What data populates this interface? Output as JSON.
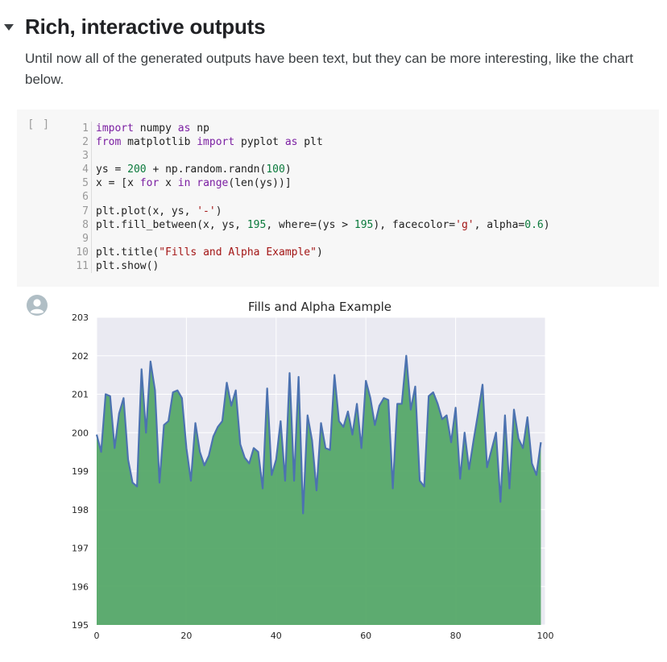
{
  "section": {
    "title": "Rich, interactive outputs",
    "collapse_icon": "caret-down-icon"
  },
  "text_cell": {
    "text": "Until now all of the generated outputs have been text, but they can be more interesting, like the chart below."
  },
  "code_cell": {
    "run_indicator": "[ ]",
    "lines": [
      [
        [
          "kw",
          "import"
        ],
        [
          "txt",
          " numpy "
        ],
        [
          "kw",
          "as"
        ],
        [
          "txt",
          " np"
        ]
      ],
      [
        [
          "kw",
          "from"
        ],
        [
          "txt",
          " matplotlib "
        ],
        [
          "kw",
          "import"
        ],
        [
          "txt",
          " pyplot "
        ],
        [
          "kw",
          "as"
        ],
        [
          "txt",
          " plt"
        ]
      ],
      [],
      [
        [
          "txt",
          "ys = "
        ],
        [
          "num",
          "200"
        ],
        [
          "txt",
          " + np.random.randn("
        ],
        [
          "num",
          "100"
        ],
        [
          "txt",
          ")"
        ]
      ],
      [
        [
          "txt",
          "x = [x "
        ],
        [
          "kw",
          "for"
        ],
        [
          "txt",
          " x "
        ],
        [
          "kw",
          "in"
        ],
        [
          "txt",
          " "
        ],
        [
          "fn",
          "range"
        ],
        [
          "txt",
          "(len(ys))]"
        ]
      ],
      [],
      [
        [
          "txt",
          "plt.plot(x, ys, "
        ],
        [
          "str",
          "'-'"
        ],
        [
          "txt",
          ")"
        ]
      ],
      [
        [
          "txt",
          "plt.fill_between(x, ys, "
        ],
        [
          "num",
          "195"
        ],
        [
          "txt",
          ", where=(ys > "
        ],
        [
          "num",
          "195"
        ],
        [
          "txt",
          "), facecolor="
        ],
        [
          "str",
          "'g'"
        ],
        [
          "txt",
          ", alpha="
        ],
        [
          "num",
          "0.6"
        ],
        [
          "txt",
          ")"
        ]
      ],
      [],
      [
        [
          "txt",
          "plt.title("
        ],
        [
          "str",
          "\"Fills and Alpha Example\""
        ],
        [
          "txt",
          ")"
        ]
      ],
      [
        [
          "txt",
          "plt.show()"
        ]
      ]
    ]
  },
  "output": {
    "avatar_icon": "user-avatar-icon"
  },
  "chart_data": {
    "type": "area",
    "title": "Fills and Alpha Example",
    "xlabel": "",
    "ylabel": "",
    "xlim": [
      0,
      100
    ],
    "ylim": [
      195,
      203
    ],
    "xticks": [
      0,
      20,
      40,
      60,
      80,
      100
    ],
    "yticks": [
      195,
      196,
      197,
      198,
      199,
      200,
      201,
      202,
      203
    ],
    "grid": true,
    "fill_baseline": 195,
    "colors": {
      "line": "#4c72b0",
      "fill": "#55a868",
      "background": "#eaeaf2",
      "grid": "#ffffff"
    },
    "x": [
      0,
      1,
      2,
      3,
      4,
      5,
      6,
      7,
      8,
      9,
      10,
      11,
      12,
      13,
      14,
      15,
      16,
      17,
      18,
      19,
      20,
      21,
      22,
      23,
      24,
      25,
      26,
      27,
      28,
      29,
      30,
      31,
      32,
      33,
      34,
      35,
      36,
      37,
      38,
      39,
      40,
      41,
      42,
      43,
      44,
      45,
      46,
      47,
      48,
      49,
      50,
      51,
      52,
      53,
      54,
      55,
      56,
      57,
      58,
      59,
      60,
      61,
      62,
      63,
      64,
      65,
      66,
      67,
      68,
      69,
      70,
      71,
      72,
      73,
      74,
      75,
      76,
      77,
      78,
      79,
      80,
      81,
      82,
      83,
      84,
      85,
      86,
      87,
      88,
      89,
      90,
      91,
      92,
      93,
      94,
      95,
      96,
      97,
      98,
      99
    ],
    "series": [
      {
        "values": [
          199.95,
          199.5,
          201.0,
          200.95,
          199.6,
          200.5,
          200.9,
          199.3,
          198.7,
          198.6,
          201.65,
          200.0,
          201.85,
          201.1,
          198.7,
          200.2,
          200.3,
          201.05,
          201.1,
          200.9,
          199.6,
          198.75,
          200.25,
          199.5,
          199.15,
          199.4,
          199.9,
          200.15,
          200.3,
          201.3,
          200.7,
          201.1,
          199.7,
          199.35,
          199.2,
          199.6,
          199.5,
          198.55,
          201.15,
          198.9,
          199.3,
          200.3,
          198.75,
          201.55,
          198.75,
          201.45,
          197.9,
          200.45,
          199.8,
          198.5,
          200.25,
          199.6,
          199.55,
          201.5,
          200.3,
          200.15,
          200.55,
          199.95,
          200.75,
          199.6,
          201.35,
          200.9,
          200.2,
          200.7,
          200.9,
          200.85,
          198.55,
          200.75,
          200.75,
          202.0,
          200.6,
          201.2,
          198.75,
          198.6,
          200.95,
          201.05,
          200.75,
          200.35,
          200.45,
          199.75,
          200.65,
          198.8,
          200.0,
          199.05,
          199.8,
          200.5,
          201.25,
          199.1,
          199.55,
          200.0,
          198.2,
          200.45,
          198.55,
          200.6,
          199.85,
          199.6,
          200.4,
          199.2,
          198.9,
          199.75
        ]
      }
    ]
  }
}
